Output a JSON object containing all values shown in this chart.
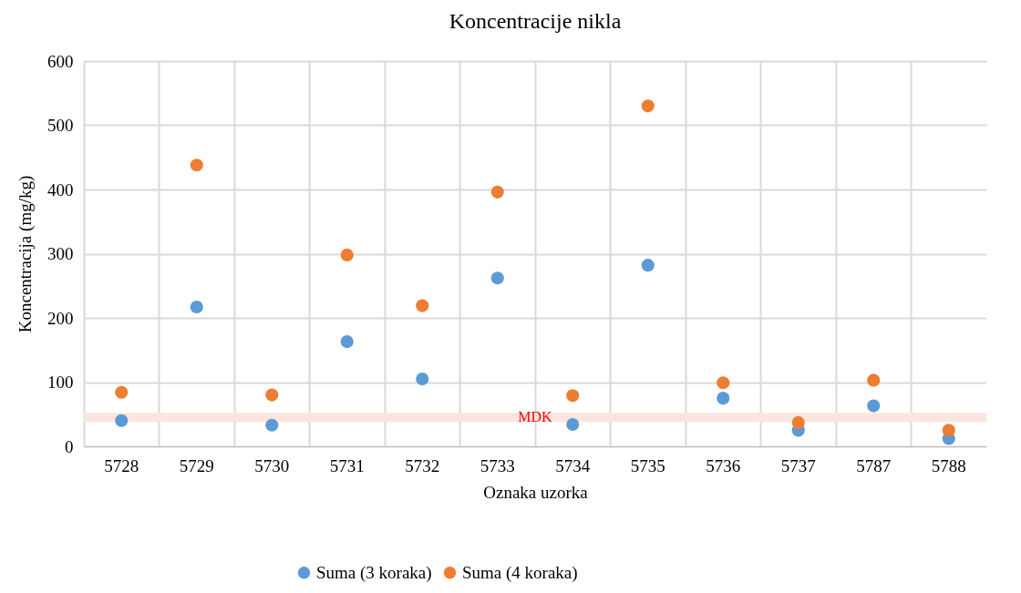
{
  "chart_data": {
    "type": "scatter",
    "title": "Koncentracije nikla",
    "xlabel": "Oznaka uzorka",
    "ylabel": "Koncentracija (mg/kg)",
    "categories": [
      "5728",
      "5729",
      "5730",
      "5731",
      "5732",
      "5733",
      "5734",
      "5735",
      "5736",
      "5737",
      "5787",
      "5788"
    ],
    "series": [
      {
        "name": "Suma (3 koraka)",
        "color": "#5b9bd5",
        "values": [
          40,
          217,
          33,
          163,
          105,
          262,
          34,
          282,
          75,
          25,
          63,
          12
        ]
      },
      {
        "name": "Suma (4 koraka)",
        "color": "#ed7d31",
        "values": [
          84,
          438,
          80,
          298,
          219,
          396,
          79,
          530,
          99,
          37,
          103,
          25
        ]
      }
    ],
    "ylim": [
      0,
      600
    ],
    "yticks": [
      0,
      100,
      200,
      300,
      400,
      500,
      600
    ],
    "ref_lines": [
      {
        "axis": "y",
        "value": 45,
        "label": "MDK",
        "color": "#fbe5de"
      }
    ],
    "grid": true,
    "legend": "bottom",
    "marker": "circle"
  }
}
